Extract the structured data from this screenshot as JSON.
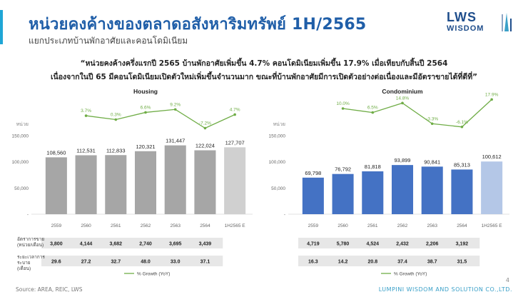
{
  "header": {
    "title": "หน่วยคงค้างของตลาดอสังหาริมทรัพย์ 1H/2565",
    "subtitle": "แยกประเภทบ้านพักอาศัยและคอนโดมิเนียม"
  },
  "logo": {
    "main": "LWS",
    "sub": "WISDOM"
  },
  "quote": {
    "line1": "“หน่วยคงค้างครึ่งแรกปี 2565 บ้านพักอาศัยเพิ่มขึ้น 4.7% คอนโดมิเนียมเพิ่มขึ้น 17.9% เมื่อเทียบกับสิ้นปี 2564",
    "line2": "เนื่องจากในปี 65 มีคอนโดมิเนียมเปิดตัวใหม่เพิ่มขึ้นจำนวนมาก ขณะที่บ้านพักอาศัยมีการเปิดตัวอย่างต่อเนื่องและมีอัตราขายได้ที่ดีที่”"
  },
  "colors": {
    "title": "#1f5ea8",
    "accent": "#1fa6d6",
    "housing_bar": "#a6a6a6",
    "housing_bar_estimate": "#d0d0d0",
    "condo_bar": "#4472c4",
    "condo_bar_estimate": "#b4c7e7",
    "growth_line": "#70ad47"
  },
  "chart_data": [
    {
      "type": "bar",
      "title": "Housing",
      "unit_label": "หน่วย",
      "categories": [
        "2559",
        "2560",
        "2561",
        "2562",
        "2563",
        "2564",
        "1H2565 E"
      ],
      "values": [
        108560,
        112531,
        112833,
        120321,
        131447,
        122024,
        127707
      ],
      "value_labels": [
        "108,560",
        "112,531",
        "112,833",
        "120,321",
        "131,447",
        "122,024",
        "127,707"
      ],
      "ylim": [
        0,
        150000
      ],
      "yticks": [
        "-",
        "50,000",
        "100,000",
        "150,000"
      ],
      "growth_series": {
        "name": "% Growth (YoY)",
        "values": [
          3.7,
          0.3,
          6.6,
          9.2,
          -7.2,
          4.7
        ],
        "labels": [
          "3.7%",
          "0.3%",
          "6.6%",
          "9.2%",
          "-7.2%",
          "4.7%"
        ]
      },
      "table": {
        "rows": [
          {
            "label_line1": "อัตราการขาย",
            "label_line2": "(หน่วย/เดือน)",
            "values": [
              "3,800",
              "4,144",
              "3,682",
              "2,740",
              "3,695",
              "3,439"
            ]
          },
          {
            "label_line1": "ระยะเวลาการ",
            "label_line2": "ระบาย",
            "label_line3": "(เดือน)",
            "values": [
              "29.6",
              "27.2",
              "32.7",
              "48.0",
              "33.0",
              "37.1"
            ]
          }
        ]
      },
      "legend": "% Growth (YoY)"
    },
    {
      "type": "bar",
      "title": "Condominium",
      "unit_label": "หน่วย",
      "categories": [
        "2559",
        "2560",
        "2561",
        "2562",
        "2563",
        "2564",
        "1H2565 E"
      ],
      "values": [
        69798,
        76792,
        81818,
        93899,
        90841,
        85313,
        100612
      ],
      "value_labels": [
        "69,798",
        "76,792",
        "81,818",
        "93,899",
        "90,841",
        "85,313",
        "100,612"
      ],
      "ylim": [
        0,
        150000
      ],
      "yticks": [
        "-",
        "50,000",
        "100,000",
        "150,000"
      ],
      "growth_series": {
        "name": "% Growth (YoY)",
        "values": [
          10.0,
          6.5,
          14.8,
          -3.3,
          -6.1,
          17.9
        ],
        "labels": [
          "10.0%",
          "6.5%",
          "14.8%",
          "-3.3%",
          "-6.1%",
          "17.9%"
        ]
      },
      "table": {
        "rows": [
          {
            "values": [
              "4,719",
              "5,780",
              "4,524",
              "2,432",
              "2,206",
              "3,192"
            ]
          },
          {
            "values": [
              "16.3",
              "14.2",
              "20.8",
              "37.4",
              "38.7",
              "31.5"
            ]
          }
        ]
      },
      "legend": "% Growth (YoY)"
    }
  ],
  "footer": {
    "source": "Source: AREA, REIC, LWS",
    "company": "LUMPINI WISDOM AND SOLUTION CO.,LTD.",
    "page": "4"
  }
}
